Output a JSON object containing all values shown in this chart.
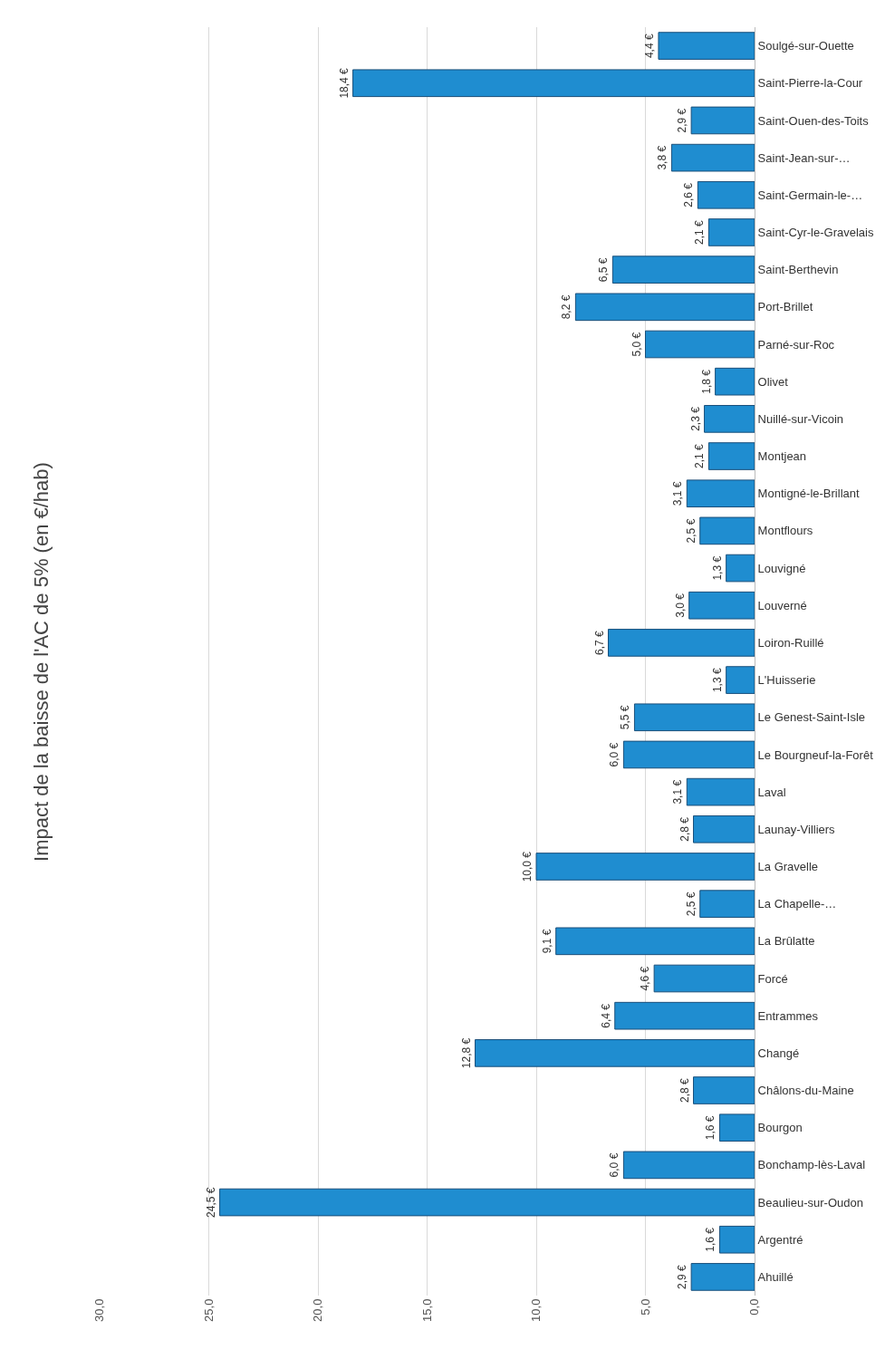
{
  "chart_data": {
    "type": "bar",
    "orientation": "horizontal",
    "title": "Impact de la baisse de l'AC de 5% (en €/hab)",
    "categories": [
      "Soulgé-sur-Ouette",
      "Saint-Pierre-la-Cour",
      "Saint-Ouen-des-Toits",
      "Saint-Jean-sur-…",
      "Saint-Germain-le-…",
      "Saint-Cyr-le-Gravelais",
      "Saint-Berthevin",
      "Port-Brillet",
      "Parné-sur-Roc",
      "Olivet",
      "Nuillé-sur-Vicoin",
      "Montjean",
      "Montigné-le-Brillant",
      "Montflours",
      "Louvigné",
      "Louverné",
      "Loiron-Ruillé",
      "L'Huisserie",
      "Le Genest-Saint-Isle",
      "Le Bourgneuf-la-Forêt",
      "Laval",
      "Launay-Villiers",
      "La Gravelle",
      "La Chapelle-…",
      "La Brûlatte",
      "Forcé",
      "Entrammes",
      "Changé",
      "Châlons-du-Maine",
      "Bourgon",
      "Bonchamp-lès-Laval",
      "Beaulieu-sur-Oudon",
      "Argentré",
      "Ahuillé"
    ],
    "values": [
      4.4,
      18.4,
      2.9,
      3.8,
      2.6,
      2.1,
      6.5,
      8.2,
      5.0,
      1.8,
      2.3,
      2.1,
      3.1,
      2.5,
      1.3,
      3.0,
      6.7,
      1.3,
      5.5,
      6.0,
      3.1,
      2.8,
      10.0,
      2.5,
      9.1,
      4.6,
      6.4,
      12.8,
      2.8,
      1.6,
      6.0,
      24.5,
      1.6,
      2.9
    ],
    "value_labels": [
      "4,4 €",
      "18,4 €",
      "2,9 €",
      "3,8 €",
      "2,6 €",
      "2,1 €",
      "6,5 €",
      "8,2 €",
      "5,0 €",
      "1,8 €",
      "2,3 €",
      "2,1 €",
      "3,1 €",
      "2,5 €",
      "1,3 €",
      "3,0 €",
      "6,7 €",
      "1,3 €",
      "5,5 €",
      "6,0 €",
      "3,1 €",
      "2,8 €",
      "10,0 €",
      "2,5 €",
      "9,1 €",
      "4,6 €",
      "6,4 €",
      "12,8 €",
      "2,8 €",
      "1,6 €",
      "6,0 €",
      "24,5 €",
      "1,6 €",
      "2,9 €"
    ],
    "color": "#1f8dd0",
    "xlim": [
      30,
      0
    ],
    "xticks": [
      {
        "value": 30,
        "label": "30,0"
      },
      {
        "value": 25,
        "label": "25,0"
      },
      {
        "value": 20,
        "label": "20,0"
      },
      {
        "value": 15,
        "label": "15,0"
      },
      {
        "value": 10,
        "label": "10,0"
      },
      {
        "value": 5,
        "label": "5,0"
      },
      {
        "value": 0,
        "label": "0,0"
      }
    ],
    "grid": "x"
  }
}
